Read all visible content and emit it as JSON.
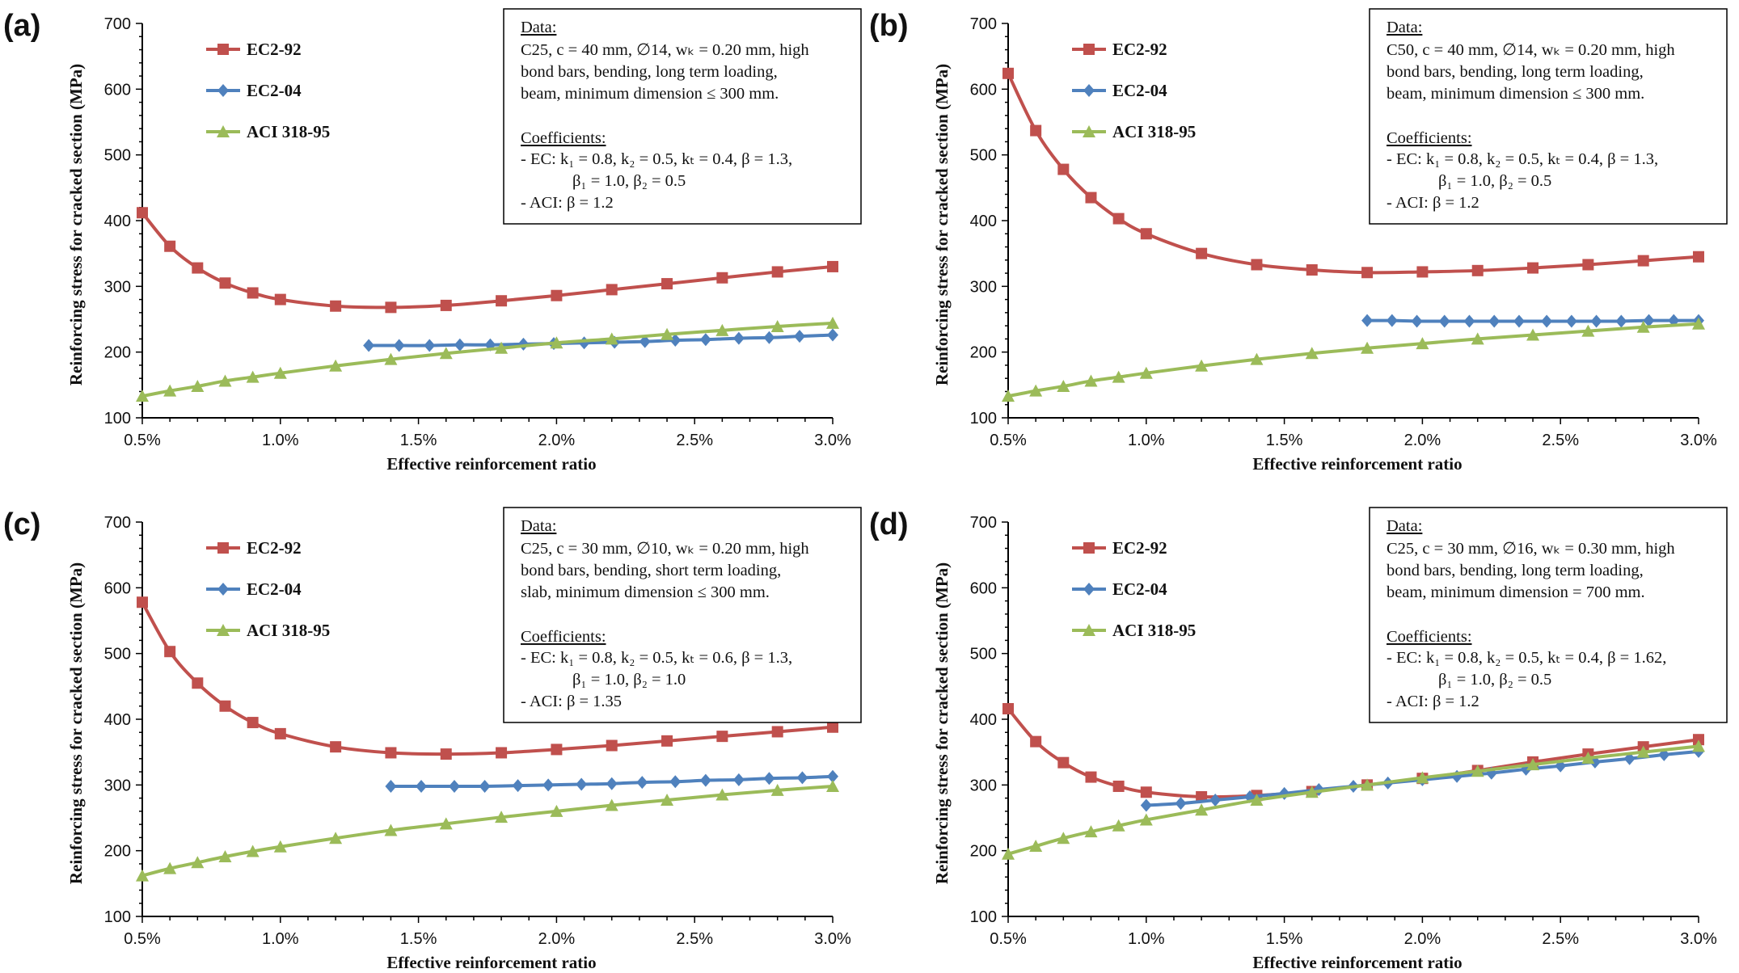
{
  "colors": {
    "EC2-92": "#c0504d",
    "EC2-04": "#4f81bd",
    "ACI 318-95": "#9bbb59"
  },
  "chart_data": [
    {
      "type": "line",
      "panel_label": "(a)",
      "xlabel": "Effective  reinforcement ratio",
      "ylabel": "Reinforcing  stress for cracked section (MPa)",
      "xlim": [
        0.5,
        3.0
      ],
      "ylim": [
        100,
        700
      ],
      "x_ticks": [
        "0.5%",
        "1.0%",
        "1.5%",
        "2.0%",
        "2.5%",
        "3.0%"
      ],
      "y_ticks": [
        "100",
        "200",
        "300",
        "400",
        "500",
        "600",
        "700"
      ],
      "legend_position": "top-left",
      "series": [
        {
          "name": "EC2-92",
          "marker": "square",
          "x": [
            0.5,
            0.6,
            0.7,
            0.8,
            0.9,
            1.0,
            1.2,
            1.4,
            1.6,
            1.8,
            2.0,
            2.2,
            2.4,
            2.6,
            2.8,
            3.0
          ],
          "y": [
            412,
            361,
            328,
            305,
            290,
            280,
            270,
            268,
            271,
            278,
            286,
            295,
            304,
            313,
            322,
            330
          ]
        },
        {
          "name": "EC2-04",
          "marker": "diamond",
          "x": [
            1.32,
            1.43,
            1.54,
            1.65,
            1.76,
            1.88,
            1.99,
            2.1,
            2.21,
            2.32,
            2.43,
            2.54,
            2.66,
            2.77,
            2.88,
            3.0
          ],
          "y": [
            210,
            210,
            210,
            211,
            211,
            212,
            213,
            214,
            215,
            216,
            218,
            219,
            221,
            222,
            224,
            226
          ]
        },
        {
          "name": "ACI 318-95",
          "marker": "triangle",
          "x": [
            0.5,
            0.6,
            0.7,
            0.8,
            0.9,
            1.0,
            1.2,
            1.4,
            1.6,
            1.8,
            2.0,
            2.2,
            2.4,
            2.6,
            2.8,
            3.0
          ],
          "y": [
            133,
            141,
            148,
            156,
            162,
            168,
            179,
            189,
            198,
            206,
            214,
            220,
            227,
            233,
            239,
            244
          ]
        }
      ],
      "annotation": {
        "data_heading": "Data:",
        "data_lines": [
          "C25, c = 40 mm, ∅14, wₖ = 0.20 mm, high",
          "bond bars, bending, long term loading,",
          "beam, minimum dimension ≤ 300 mm."
        ],
        "coef_heading": "Coefficients:",
        "coef_lines": [
          "- EC:   k₁ = 0.8, k₂ = 0.5, kₜ = 0.4, β = 1.3,",
          "β₁ = 1.0, β₂ = 0.5",
          "- ACI: β = 1.2"
        ]
      }
    },
    {
      "type": "line",
      "panel_label": "(b)",
      "xlabel": "Effective  reinforcement ratio",
      "ylabel": "Reinforcing  stress for cracked section (MPa)",
      "xlim": [
        0.5,
        3.0
      ],
      "ylim": [
        100,
        700
      ],
      "x_ticks": [
        "0.5%",
        "1.0%",
        "1.5%",
        "2.0%",
        "2.5%",
        "3.0%"
      ],
      "y_ticks": [
        "100",
        "200",
        "300",
        "400",
        "500",
        "600",
        "700"
      ],
      "legend_position": "top-left",
      "series": [
        {
          "name": "EC2-92",
          "marker": "square",
          "x": [
            0.5,
            0.6,
            0.7,
            0.8,
            0.9,
            1.0,
            1.2,
            1.4,
            1.6,
            1.8,
            2.0,
            2.2,
            2.4,
            2.6,
            2.8,
            3.0
          ],
          "y": [
            624,
            537,
            478,
            435,
            403,
            380,
            350,
            333,
            325,
            321,
            322,
            324,
            328,
            333,
            339,
            345
          ]
        },
        {
          "name": "EC2-04",
          "marker": "diamond",
          "x": [
            1.8,
            1.89,
            1.98,
            2.08,
            2.17,
            2.26,
            2.35,
            2.45,
            2.54,
            2.63,
            2.72,
            2.82,
            2.91,
            3.0
          ],
          "y": [
            248,
            248,
            247,
            247,
            247,
            247,
            247,
            247,
            247,
            247,
            247,
            248,
            248,
            248
          ]
        },
        {
          "name": "ACI 318-95",
          "marker": "triangle",
          "x": [
            0.5,
            0.6,
            0.7,
            0.8,
            0.9,
            1.0,
            1.2,
            1.4,
            1.6,
            1.8,
            2.0,
            2.2,
            2.4,
            2.6,
            2.8,
            3.0
          ],
          "y": [
            133,
            141,
            148,
            156,
            162,
            168,
            179,
            189,
            198,
            206,
            213,
            220,
            226,
            232,
            238,
            243
          ]
        }
      ],
      "annotation": {
        "data_heading": "Data:",
        "data_lines": [
          "C50, c = 40 mm, ∅14, wₖ = 0.20 mm, high",
          "bond bars, bending, long term loading,",
          "beam, minimum dimension ≤ 300 mm."
        ],
        "coef_heading": "Coefficients:",
        "coef_lines": [
          "- EC:   k₁ = 0.8, k₂ = 0.5, kₜ = 0.4, β = 1.3,",
          "β₁ = 1.0, β₂ = 0.5",
          "- ACI: β = 1.2"
        ]
      }
    },
    {
      "type": "line",
      "panel_label": "(c)",
      "xlabel": "Effective  reinforcement ratio",
      "ylabel": "Reinforcing  stress for cracked section (MPa)",
      "xlim": [
        0.5,
        3.0
      ],
      "ylim": [
        100,
        700
      ],
      "x_ticks": [
        "0.5%",
        "1.0%",
        "1.5%",
        "2.0%",
        "2.5%",
        "3.0%"
      ],
      "y_ticks": [
        "100",
        "200",
        "300",
        "400",
        "500",
        "600",
        "700"
      ],
      "legend_position": "top-left",
      "series": [
        {
          "name": "EC2-92",
          "marker": "square",
          "x": [
            0.5,
            0.6,
            0.7,
            0.8,
            0.9,
            1.0,
            1.2,
            1.4,
            1.6,
            1.8,
            2.0,
            2.2,
            2.4,
            2.6,
            2.8,
            3.0
          ],
          "y": [
            578,
            503,
            455,
            420,
            395,
            378,
            358,
            349,
            347,
            349,
            354,
            360,
            367,
            374,
            381,
            388
          ]
        },
        {
          "name": "EC2-04",
          "marker": "diamond",
          "x": [
            1.4,
            1.51,
            1.63,
            1.74,
            1.86,
            1.97,
            2.09,
            2.2,
            2.31,
            2.43,
            2.54,
            2.66,
            2.77,
            2.89,
            3.0
          ],
          "y": [
            298,
            298,
            298,
            298,
            299,
            300,
            301,
            302,
            304,
            305,
            307,
            308,
            310,
            311,
            313
          ]
        },
        {
          "name": "ACI 318-95",
          "marker": "triangle",
          "x": [
            0.5,
            0.6,
            0.7,
            0.8,
            0.9,
            1.0,
            1.2,
            1.4,
            1.6,
            1.8,
            2.0,
            2.2,
            2.4,
            2.6,
            2.8,
            3.0
          ],
          "y": [
            162,
            173,
            182,
            191,
            199,
            206,
            219,
            231,
            241,
            251,
            260,
            269,
            277,
            285,
            292,
            298
          ]
        }
      ],
      "annotation": {
        "data_heading": "Data:",
        "data_lines": [
          "C25, c = 30 mm, ∅10, wₖ = 0.20 mm, high",
          "bond bars, bending, short term loading,",
          "slab, minimum dimension ≤ 300 mm."
        ],
        "coef_heading": "Coefficients:",
        "coef_lines": [
          "- EC:   k₁ = 0.8, k₂ = 0.5, kₜ = 0.6, β = 1.3,",
          "β₁ = 1.0, β₂ = 1.0",
          "- ACI: β = 1.35"
        ]
      }
    },
    {
      "type": "line",
      "panel_label": "(d)",
      "xlabel": "Effective  reinforcement ratio",
      "ylabel": "Reinforcing  stress for cracked section (MPa)",
      "xlim": [
        0.5,
        3.0
      ],
      "ylim": [
        100,
        700
      ],
      "x_ticks": [
        "0.5%",
        "1.0%",
        "1.5%",
        "2.0%",
        "2.5%",
        "3.0%"
      ],
      "y_ticks": [
        "100",
        "200",
        "300",
        "400",
        "500",
        "600",
        "700"
      ],
      "legend_position": "top-left",
      "series": [
        {
          "name": "EC2-92",
          "marker": "square",
          "x": [
            0.5,
            0.6,
            0.7,
            0.8,
            0.9,
            1.0,
            1.2,
            1.4,
            1.6,
            1.8,
            2.0,
            2.2,
            2.4,
            2.6,
            2.8,
            3.0
          ],
          "y": [
            416,
            366,
            334,
            312,
            298,
            289,
            282,
            284,
            290,
            300,
            310,
            322,
            335,
            347,
            358,
            369
          ]
        },
        {
          "name": "EC2-04",
          "marker": "diamond",
          "x": [
            1.0,
            1.125,
            1.25,
            1.375,
            1.5,
            1.625,
            1.75,
            1.875,
            2.0,
            2.125,
            2.25,
            2.375,
            2.5,
            2.625,
            2.75,
            2.875,
            3.0
          ],
          "y": [
            269,
            272,
            277,
            282,
            287,
            293,
            298,
            303,
            308,
            313,
            318,
            324,
            329,
            335,
            340,
            346,
            351
          ]
        },
        {
          "name": "ACI 318-95",
          "marker": "triangle",
          "x": [
            0.5,
            0.6,
            0.7,
            0.8,
            0.9,
            1.0,
            1.2,
            1.4,
            1.6,
            1.8,
            2.0,
            2.2,
            2.4,
            2.6,
            2.8,
            3.0
          ],
          "y": [
            195,
            207,
            219,
            229,
            238,
            247,
            262,
            277,
            289,
            300,
            311,
            321,
            331,
            341,
            350,
            359
          ]
        }
      ],
      "annotation": {
        "data_heading": "Data:",
        "data_lines": [
          "C25, c = 30 mm, ∅16, wₖ = 0.30 mm, high",
          "bond bars, bending, long term loading,",
          "beam, minimum dimension = 700 mm."
        ],
        "coef_heading": "Coefficients:",
        "coef_lines": [
          "- EC:   k₁ = 0.8, k₂ = 0.5, kₜ = 0.4, β = 1.62,",
          "β₁ = 1.0, β₂ = 0.5",
          "- ACI: β = 1.2"
        ]
      }
    }
  ]
}
